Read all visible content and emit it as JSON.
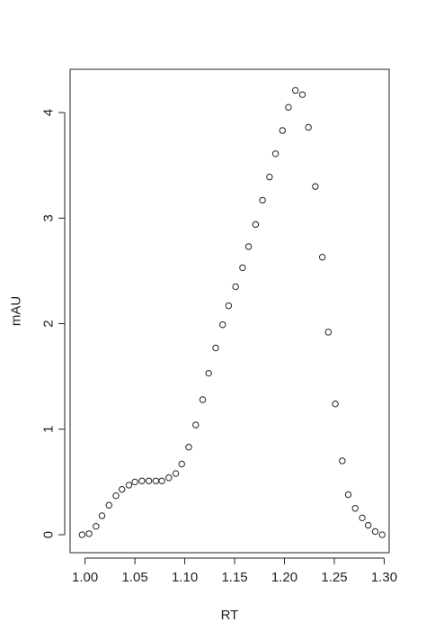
{
  "chart_data": {
    "type": "scatter",
    "xlabel": "RT",
    "ylabel": "mAU",
    "xlim": [
      0.985,
      1.305
    ],
    "ylim": [
      -0.17,
      4.41
    ],
    "x_ticks": [
      1.0,
      1.05,
      1.1,
      1.15,
      1.2,
      1.25,
      1.3
    ],
    "x_tick_labels": [
      "1.00",
      "1.05",
      "1.10",
      "1.15",
      "1.20",
      "1.25",
      "1.30"
    ],
    "y_ticks": [
      0,
      1,
      2,
      3,
      4
    ],
    "y_tick_labels": [
      "0",
      "1",
      "2",
      "3",
      "4"
    ],
    "grid": false,
    "marker": "open-circle",
    "colors": {
      "marker": "#222222",
      "axis": "#222222",
      "background": "#ffffff"
    },
    "series": [
      {
        "x": [
          0.997,
          1.004,
          1.011,
          1.017,
          1.024,
          1.031,
          1.037,
          1.044,
          1.05,
          1.057,
          1.064,
          1.071,
          1.077,
          1.084,
          1.091,
          1.097,
          1.104,
          1.111,
          1.118,
          1.124,
          1.131,
          1.138,
          1.144,
          1.151,
          1.158,
          1.164,
          1.171,
          1.178,
          1.185,
          1.191,
          1.198,
          1.204,
          1.211,
          1.218,
          1.224,
          1.231,
          1.238,
          1.244,
          1.251,
          1.258,
          1.264,
          1.271,
          1.278,
          1.284,
          1.291,
          1.298
        ],
        "y": [
          0.0,
          0.01,
          0.08,
          0.18,
          0.28,
          0.37,
          0.43,
          0.47,
          0.5,
          0.51,
          0.51,
          0.51,
          0.51,
          0.54,
          0.58,
          0.67,
          0.83,
          1.04,
          1.28,
          1.53,
          1.77,
          1.99,
          2.17,
          2.35,
          2.53,
          2.73,
          2.94,
          3.17,
          3.39,
          3.61,
          3.83,
          4.05,
          4.21,
          4.17,
          3.86,
          3.3,
          2.63,
          1.92,
          1.24,
          0.7,
          0.38,
          0.25,
          0.16,
          0.09,
          0.03,
          0.0
        ]
      }
    ]
  }
}
